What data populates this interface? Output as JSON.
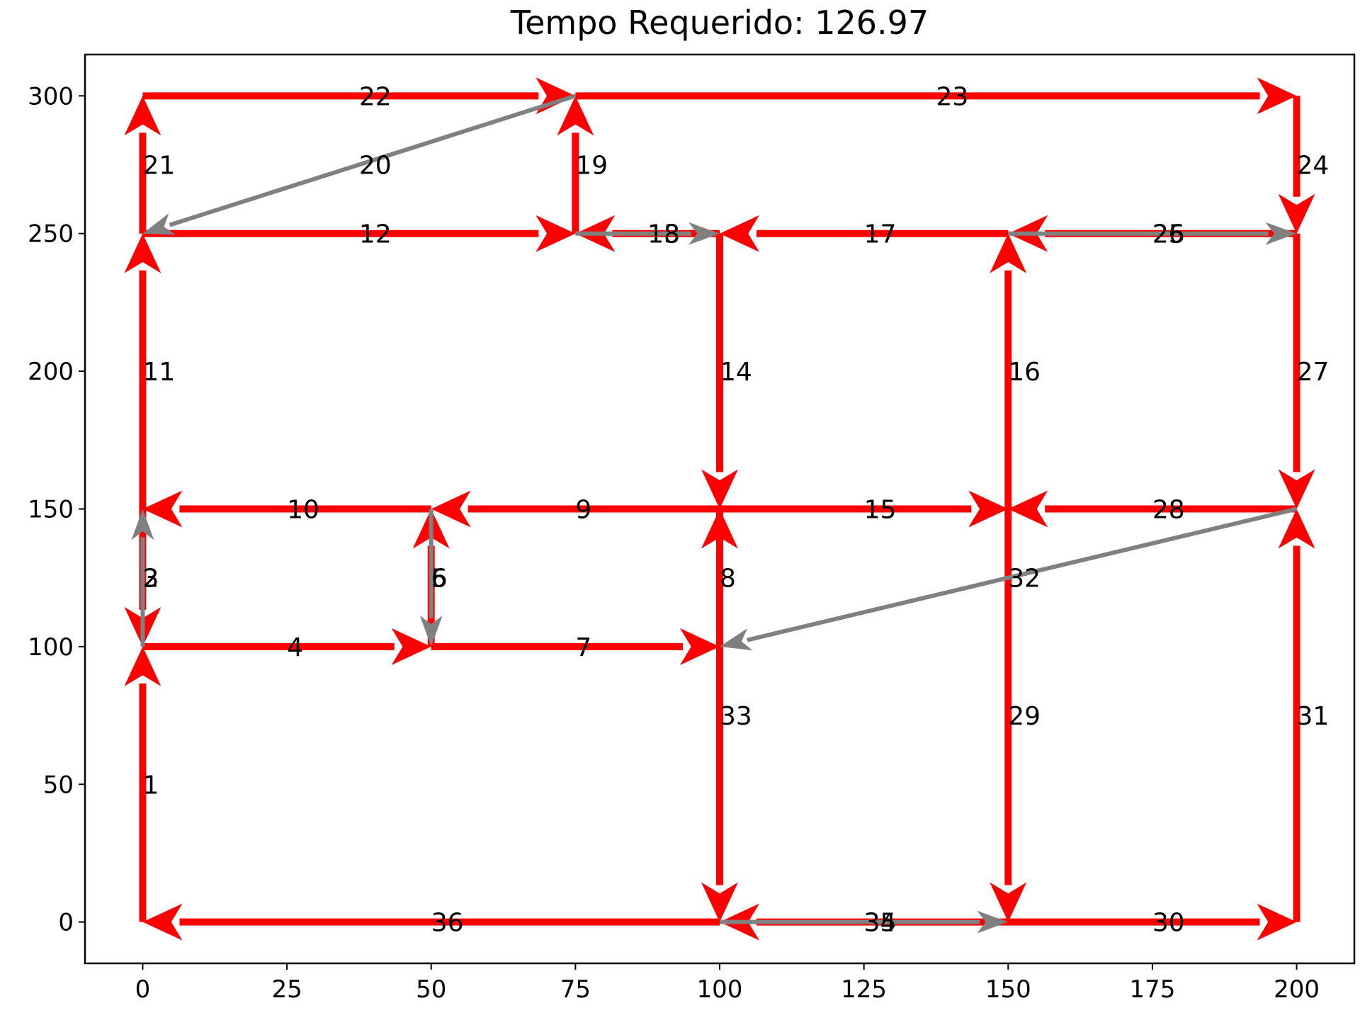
{
  "chart_data": {
    "type": "directed-graph",
    "title": "Tempo Requerido: 126.97",
    "xlim": [
      -10,
      210
    ],
    "ylim": [
      -15,
      315
    ],
    "xticks": [
      0,
      25,
      50,
      75,
      100,
      125,
      150,
      175,
      200
    ],
    "yticks": [
      0,
      50,
      100,
      150,
      200,
      250,
      300
    ],
    "colors": {
      "required": "#ff0000",
      "deadhead": "#808080",
      "axis": "#000000"
    },
    "edges": [
      {
        "label": "1",
        "from": [
          0,
          0
        ],
        "to": [
          0,
          100
        ],
        "kind": "required"
      },
      {
        "label": "2",
        "from": [
          0,
          100
        ],
        "to": [
          0,
          150
        ],
        "kind": "deadhead"
      },
      {
        "label": "3",
        "from": [
          0,
          150
        ],
        "to": [
          0,
          100
        ],
        "kind": "required"
      },
      {
        "label": "4",
        "from": [
          0,
          100
        ],
        "to": [
          50,
          100
        ],
        "kind": "required"
      },
      {
        "label": "5",
        "from": [
          50,
          150
        ],
        "to": [
          50,
          100
        ],
        "kind": "deadhead"
      },
      {
        "label": "6",
        "from": [
          50,
          100
        ],
        "to": [
          50,
          150
        ],
        "kind": "required"
      },
      {
        "label": "7",
        "from": [
          50,
          100
        ],
        "to": [
          100,
          100
        ],
        "kind": "required"
      },
      {
        "label": "8",
        "from": [
          100,
          100
        ],
        "to": [
          100,
          150
        ],
        "kind": "required"
      },
      {
        "label": "9",
        "from": [
          100,
          150
        ],
        "to": [
          50,
          150
        ],
        "kind": "required"
      },
      {
        "label": "10",
        "from": [
          50,
          150
        ],
        "to": [
          0,
          150
        ],
        "kind": "required"
      },
      {
        "label": "11",
        "from": [
          0,
          150
        ],
        "to": [
          0,
          250
        ],
        "kind": "required"
      },
      {
        "label": "12",
        "from": [
          0,
          250
        ],
        "to": [
          75,
          250
        ],
        "kind": "required"
      },
      {
        "label": "13",
        "from": [
          100,
          250
        ],
        "to": [
          75,
          250
        ],
        "kind": "required"
      },
      {
        "label": "14",
        "from": [
          100,
          250
        ],
        "to": [
          100,
          150
        ],
        "kind": "required"
      },
      {
        "label": "15",
        "from": [
          100,
          150
        ],
        "to": [
          150,
          150
        ],
        "kind": "required"
      },
      {
        "label": "16",
        "from": [
          150,
          150
        ],
        "to": [
          150,
          250
        ],
        "kind": "required"
      },
      {
        "label": "17",
        "from": [
          150,
          250
        ],
        "to": [
          100,
          250
        ],
        "kind": "required"
      },
      {
        "label": "18",
        "from": [
          75,
          250
        ],
        "to": [
          100,
          250
        ],
        "kind": "deadhead"
      },
      {
        "label": "19",
        "from": [
          75,
          250
        ],
        "to": [
          75,
          300
        ],
        "kind": "required"
      },
      {
        "label": "20",
        "from": [
          75,
          300
        ],
        "to": [
          0,
          250
        ],
        "kind": "deadhead"
      },
      {
        "label": "21",
        "from": [
          0,
          250
        ],
        "to": [
          0,
          300
        ],
        "kind": "required"
      },
      {
        "label": "22",
        "from": [
          0,
          300
        ],
        "to": [
          75,
          300
        ],
        "kind": "required"
      },
      {
        "label": "23",
        "from": [
          75,
          300
        ],
        "to": [
          200,
          300
        ],
        "kind": "required"
      },
      {
        "label": "24",
        "from": [
          200,
          300
        ],
        "to": [
          200,
          250
        ],
        "kind": "required"
      },
      {
        "label": "25",
        "from": [
          150,
          250
        ],
        "to": [
          200,
          250
        ],
        "kind": "deadhead"
      },
      {
        "label": "26",
        "from": [
          200,
          250
        ],
        "to": [
          150,
          250
        ],
        "kind": "required"
      },
      {
        "label": "27",
        "from": [
          200,
          250
        ],
        "to": [
          200,
          150
        ],
        "kind": "required"
      },
      {
        "label": "28",
        "from": [
          200,
          150
        ],
        "to": [
          150,
          150
        ],
        "kind": "required"
      },
      {
        "label": "29",
        "from": [
          150,
          150
        ],
        "to": [
          150,
          0
        ],
        "kind": "required"
      },
      {
        "label": "30",
        "from": [
          150,
          0
        ],
        "to": [
          200,
          0
        ],
        "kind": "required"
      },
      {
        "label": "31",
        "from": [
          200,
          0
        ],
        "to": [
          200,
          150
        ],
        "kind": "required"
      },
      {
        "label": "32",
        "from": [
          200,
          150
        ],
        "to": [
          100,
          100
        ],
        "kind": "deadhead"
      },
      {
        "label": "33",
        "from": [
          100,
          150
        ],
        "to": [
          100,
          0
        ],
        "kind": "required"
      },
      {
        "label": "34",
        "from": [
          150,
          0
        ],
        "to": [
          100,
          0
        ],
        "kind": "required"
      },
      {
        "label": "35",
        "from": [
          100,
          0
        ],
        "to": [
          150,
          0
        ],
        "kind": "deadhead"
      },
      {
        "label": "36",
        "from": [
          100,
          0
        ],
        "to": [
          0,
          0
        ],
        "kind": "required"
      }
    ]
  }
}
